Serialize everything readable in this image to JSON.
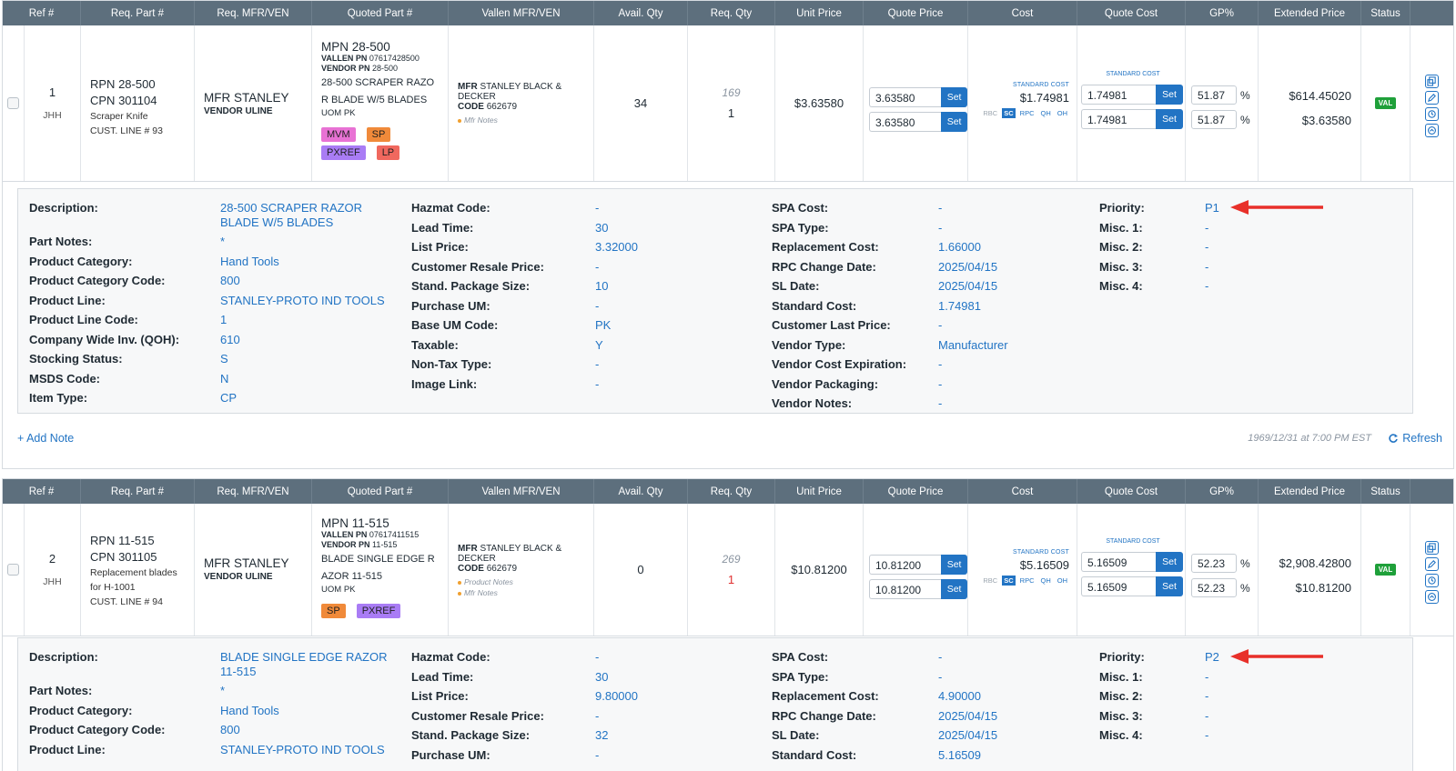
{
  "columns": [
    "Ref #",
    "Req. Part #",
    "Req. MFR/VEN",
    "Quoted Part #",
    "Vallen MFR/VEN",
    "Avail. Qty",
    "Req. Qty",
    "Unit Price",
    "Quote Price",
    "Cost",
    "Quote Cost",
    "GP%",
    "Extended Price",
    "Status"
  ],
  "items": [
    {
      "ref": "1",
      "user": "JHH",
      "rpn_label": "RPN",
      "rpn": "28-500",
      "cpn_label": "CPN",
      "cpn": "301104",
      "req_desc": "Scraper Knife",
      "req_desc2": "",
      "cust_line": "CUST. LINE # 93",
      "mfr_label": "MFR",
      "mfr": "STANLEY",
      "vendor": "VENDOR ULINE",
      "mpn_label": "MPN",
      "mpn": "28-500",
      "vallen_pn_label": "VALLEN PN",
      "vallen_pn": "07617428500",
      "vendor_pn_label": "VENDOR PN",
      "vendor_pn": "28-500",
      "quoted_desc1": "28-500 SCRAPER RAZO",
      "quoted_desc2": "R BLADE W/5 BLADES",
      "uom_label": "UOM",
      "uom": "PK",
      "badges": [
        "MVM",
        "SP",
        "PXREF",
        "LP"
      ],
      "vallen_mfr_label": "MFR",
      "vallen_mfr": "STANLEY BLACK & DECKER",
      "code_label": "CODE",
      "code": "662679",
      "notes": [
        "Mfr Notes"
      ],
      "avail_qty": "34",
      "req_qty_italic": "169",
      "req_qty": "1",
      "unit_price": "$3.63580",
      "quote_price_1": "3.63580",
      "quote_price_2": "3.63580",
      "set_label": "Set",
      "standard_cost_label": "STANDARD COST",
      "cost": "$1.74981",
      "cost_chips": [
        "RBC",
        "SC",
        "RPC",
        "QH",
        "OH"
      ],
      "quote_cost_1": "1.74981",
      "quote_cost_2": "1.74981",
      "gp_1": "51.87",
      "gp_2": "51.87",
      "pct": "%",
      "ext_price_1": "$614.45020",
      "ext_price_2": "$3.63580",
      "status": "VAL"
    },
    {
      "ref": "2",
      "user": "JHH",
      "rpn_label": "RPN",
      "rpn": "11-515",
      "cpn_label": "CPN",
      "cpn": "301105",
      "req_desc": "Replacement blades",
      "req_desc2": "for H-1001",
      "cust_line": "CUST. LINE # 94",
      "mfr_label": "MFR",
      "mfr": "STANLEY",
      "vendor": "VENDOR ULINE",
      "mpn_label": "MPN",
      "mpn": "11-515",
      "vallen_pn_label": "VALLEN PN",
      "vallen_pn": "07617411515",
      "vendor_pn_label": "VENDOR PN",
      "vendor_pn": "11-515",
      "quoted_desc1": "BLADE SINGLE EDGE R",
      "quoted_desc2": "AZOR 11-515",
      "uom_label": "UOM",
      "uom": "PK",
      "badges": [
        "SP",
        "PXREF"
      ],
      "vallen_mfr_label": "MFR",
      "vallen_mfr": "STANLEY BLACK & DECKER",
      "code_label": "CODE",
      "code": "662679",
      "notes": [
        "Product Notes",
        "Mfr Notes"
      ],
      "avail_qty": "0",
      "req_qty_italic": "269",
      "req_qty": "1",
      "unit_price": "$10.81200",
      "quote_price_1": "10.81200",
      "quote_price_2": "10.81200",
      "set_label": "Set",
      "standard_cost_label": "STANDARD COST",
      "cost": "$5.16509",
      "cost_chips": [
        "RBC",
        "SC",
        "RPC",
        "QH",
        "OH"
      ],
      "quote_cost_1": "5.16509",
      "quote_cost_2": "5.16509",
      "gp_1": "52.23",
      "gp_2": "52.23",
      "pct": "%",
      "ext_price_1": "$2,908.42800",
      "ext_price_2": "$10.81200",
      "status": "VAL"
    }
  ],
  "details": [
    {
      "col1": [
        [
          "Description:",
          "28-500 SCRAPER RAZOR BLADE W/5 BLADES"
        ],
        [
          "Part Notes:",
          "*"
        ],
        [
          "Product Category:",
          "Hand Tools"
        ],
        [
          "Product Category Code:",
          "800"
        ],
        [
          "Product Line:",
          "STANLEY-PROTO IND TOOLS"
        ],
        [
          "Product Line Code:",
          "1"
        ],
        [
          "Company Wide Inv. (QOH):",
          "610"
        ],
        [
          "Stocking Status:",
          "S"
        ],
        [
          "MSDS Code:",
          "N"
        ],
        [
          "Item Type:",
          "CP"
        ]
      ],
      "col2": [
        [
          "Hazmat Code:",
          "-"
        ],
        [
          "Lead Time:",
          "30"
        ],
        [
          "List Price:",
          "3.32000"
        ],
        [
          "Customer Resale Price:",
          "-"
        ],
        [
          "Stand. Package Size:",
          "10"
        ],
        [
          "Purchase UM:",
          "-"
        ],
        [
          "Base UM Code:",
          "PK"
        ],
        [
          "Taxable:",
          "Y"
        ],
        [
          "Non-Tax Type:",
          "-"
        ],
        [
          "Image Link:",
          "-"
        ]
      ],
      "col3": [
        [
          "SPA Cost:",
          "-"
        ],
        [
          "SPA Type:",
          "-"
        ],
        [
          "Replacement Cost:",
          "1.66000"
        ],
        [
          "RPC Change Date:",
          "2025/04/15"
        ],
        [
          "SL Date:",
          "2025/04/15"
        ],
        [
          "Standard Cost:",
          "1.74981"
        ],
        [
          "Customer Last Price:",
          "-"
        ],
        [
          "Vendor Type:",
          "Manufacturer"
        ],
        [
          "Vendor Cost Expiration:",
          "-"
        ],
        [
          "Vendor Packaging:",
          "-"
        ],
        [
          "Vendor Notes:",
          "-"
        ]
      ],
      "col4": [
        [
          "Priority:",
          "P1"
        ],
        [
          "Misc. 1:",
          "-"
        ],
        [
          "Misc. 2:",
          "-"
        ],
        [
          "Misc. 3:",
          "-"
        ],
        [
          "Misc. 4:",
          "-"
        ]
      ]
    },
    {
      "col1": [
        [
          "Description:",
          "BLADE SINGLE EDGE RAZOR 11-515"
        ],
        [
          "Part Notes:",
          "*"
        ],
        [
          "Product Category:",
          "Hand Tools"
        ],
        [
          "Product Category Code:",
          "800"
        ],
        [
          "Product Line:",
          "STANLEY-PROTO IND TOOLS"
        ]
      ],
      "col2": [
        [
          "Hazmat Code:",
          "-"
        ],
        [
          "Lead Time:",
          "30"
        ],
        [
          "List Price:",
          "9.80000"
        ],
        [
          "Customer Resale Price:",
          "-"
        ],
        [
          "Stand. Package Size:",
          "32"
        ],
        [
          "Purchase UM:",
          "-"
        ]
      ],
      "col3": [
        [
          "SPA Cost:",
          "-"
        ],
        [
          "SPA Type:",
          "-"
        ],
        [
          "Replacement Cost:",
          "4.90000"
        ],
        [
          "RPC Change Date:",
          "2025/04/15"
        ],
        [
          "SL Date:",
          "2025/04/15"
        ],
        [
          "Standard Cost:",
          "5.16509"
        ]
      ],
      "col4": [
        [
          "Priority:",
          "P2"
        ],
        [
          "Misc. 1:",
          "-"
        ],
        [
          "Misc. 2:",
          "-"
        ],
        [
          "Misc. 3:",
          "-"
        ],
        [
          "Misc. 4:",
          "-"
        ]
      ]
    }
  ],
  "footer": {
    "add_note": "+ Add Note",
    "timestamp": "1969/12/31 at 7:00 PM EST",
    "refresh": "Refresh"
  },
  "colors": {
    "header_bg": "#5d6f7d",
    "link_blue": "#2274c4",
    "arrow_red": "#e8302a",
    "val_green": "#1fa03a"
  }
}
